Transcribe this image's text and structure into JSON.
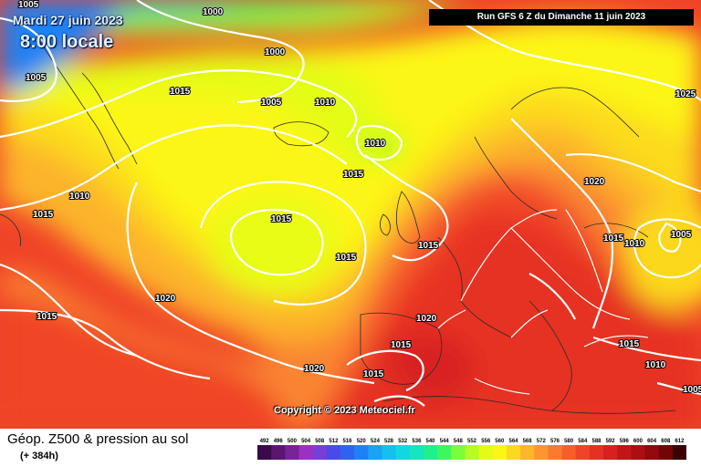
{
  "header": {
    "date": "Mardi 27 juin 2023",
    "time": "8:00 locale",
    "run": "Run GFS 6 Z du Dimanche 11 juin 2023"
  },
  "copyright": "Copyright © 2023 Meteociel.fr",
  "footer": {
    "title": "Géop. Z500 & pression au sol",
    "subtitle": "(+ 384h)"
  },
  "isobar_labels": [
    "1005",
    "1000",
    "1000",
    "1005",
    "1015",
    "1005",
    "1010",
    "1010",
    "1025",
    "1015",
    "1010",
    "1015",
    "1020",
    "1015",
    "1015",
    "1015",
    "1010",
    "1005",
    "1020",
    "1015",
    "1020",
    "1015",
    "1015",
    "1020",
    "1015",
    "1015",
    "1010",
    "1005"
  ],
  "color_scale": {
    "labels": [
      "492",
      "496",
      "500",
      "504",
      "508",
      "512",
      "516",
      "520",
      "524",
      "528",
      "532",
      "536",
      "540",
      "544",
      "548",
      "552",
      "556",
      "560",
      "564",
      "568",
      "572",
      "576",
      "580",
      "584",
      "588",
      "592",
      "596",
      "600",
      "604",
      "608",
      "612"
    ],
    "colors": [
      "#3a0a4a",
      "#5a1670",
      "#7a2298",
      "#9c30c0",
      "#7a3ed8",
      "#4a4ae8",
      "#2f62f0",
      "#1e82f4",
      "#1aa2f4",
      "#14c0ee",
      "#10d8e0",
      "#14e6c0",
      "#1ef090",
      "#3cf860",
      "#7cfc3a",
      "#b4fc22",
      "#e4fc14",
      "#fcf614",
      "#fcd81e",
      "#fcb62a",
      "#fc9630",
      "#fa7a30",
      "#f65e2c",
      "#f04428",
      "#e63024",
      "#d82020",
      "#c41418",
      "#ae0e12",
      "#920a0c",
      "#720606",
      "#3a0202"
    ]
  }
}
